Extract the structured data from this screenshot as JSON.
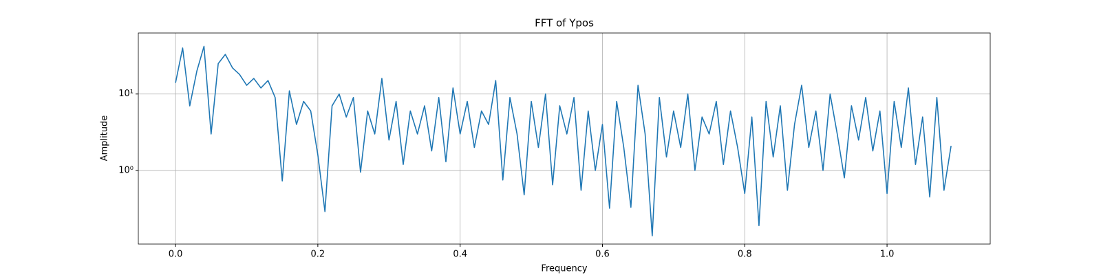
{
  "chart_data": {
    "type": "line",
    "title": "FFT of Ypos",
    "x_label": "Frequency",
    "y_label": "Amplitude",
    "x": [
      0,
      0.01,
      0.02,
      0.03,
      0.04,
      0.05,
      0.06,
      0.07,
      0.08,
      0.09,
      0.1,
      0.11,
      0.12,
      0.13,
      0.14,
      0.15,
      0.16,
      0.17,
      0.18,
      0.19,
      0.2,
      0.21,
      0.22,
      0.23,
      0.24,
      0.25,
      0.26,
      0.27,
      0.28,
      0.29,
      0.3,
      0.31,
      0.32,
      0.33,
      0.34,
      0.35,
      0.36,
      0.37,
      0.38,
      0.39,
      0.4,
      0.41,
      0.42,
      0.43,
      0.44,
      0.45,
      0.46,
      0.47,
      0.48,
      0.49,
      0.5,
      0.51,
      0.52,
      0.53,
      0.54,
      0.55,
      0.56,
      0.57,
      0.58,
      0.59,
      0.6,
      0.61,
      0.62,
      0.63,
      0.64,
      0.65,
      0.66,
      0.67,
      0.68,
      0.69,
      0.7,
      0.71,
      0.72,
      0.73,
      0.74,
      0.75,
      0.76,
      0.77,
      0.78,
      0.79,
      0.8,
      0.81,
      0.82,
      0.83,
      0.84,
      0.85,
      0.86,
      0.87,
      0.88,
      0.89,
      0.9,
      0.91,
      0.92,
      0.93,
      0.94,
      0.95,
      0.96,
      0.97,
      0.98,
      0.99,
      1.0,
      1.01,
      1.02,
      1.03,
      1.04,
      1.05,
      1.06,
      1.07,
      1.08,
      1.09
    ],
    "values": [
      14,
      40,
      7,
      20,
      42,
      3,
      25,
      33,
      22,
      18,
      13,
      16,
      12,
      15,
      9,
      0.73,
      11,
      4,
      8,
      6,
      1.6,
      0.29,
      7,
      10,
      5,
      9,
      0.95,
      6,
      3,
      16,
      2.5,
      8,
      1.2,
      6,
      3,
      7,
      1.8,
      9,
      1.3,
      12,
      3,
      8,
      2,
      6,
      4,
      15,
      0.75,
      9,
      3,
      0.48,
      8,
      2,
      10,
      0.65,
      7,
      3,
      9,
      0.55,
      6,
      1,
      4,
      0.32,
      8,
      2,
      0.33,
      13,
      3,
      0.14,
      9,
      1.5,
      6,
      2,
      10,
      1,
      5,
      3,
      8,
      1.2,
      6,
      2,
      0.5,
      5,
      0.19,
      8,
      1.5,
      7,
      0.55,
      4,
      13,
      2,
      6,
      1,
      10,
      3,
      0.8,
      7,
      2.5,
      9,
      1.8,
      6,
      0.5,
      8,
      2,
      12,
      1.2,
      5,
      0.45,
      9,
      0.55,
      2.1
    ],
    "color": "#1f77b4",
    "log_y": true,
    "grid": true,
    "xlim": [
      -0.0523,
      1.145
    ],
    "xticks": [
      {
        "value": 0,
        "label": "0.0"
      },
      0.2,
      0.4,
      0.6,
      0.8,
      {
        "value": 1,
        "label": "1.0"
      }
    ],
    "ylim": [
      0.109,
      62.8
    ],
    "yticks": [
      {
        "value": 1,
        "label": "10⁰"
      },
      {
        "value": 10,
        "label": "10¹"
      }
    ]
  }
}
